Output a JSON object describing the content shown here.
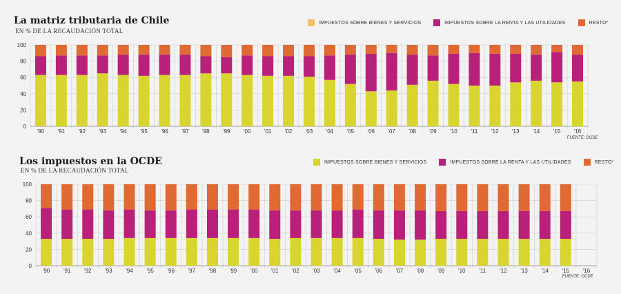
{
  "colors": {
    "bienes": "#d9d530",
    "renta": "#b8207a",
    "resto": "#e06a34",
    "grid": "#cfcfcf",
    "axis": "#888888"
  },
  "chart_data": [
    {
      "type": "bar",
      "stacked": true,
      "title": "La matriz tributaria de Chile",
      "subtitle": "EN % DE LA RECAUDACIÓN TOTAL",
      "source": "FUENTE: OCDE",
      "ylim": [
        0,
        100
      ],
      "yticks": [
        0,
        20,
        40,
        60,
        80,
        100
      ],
      "legend_position": "top-right",
      "categories": [
        "'90",
        "'91",
        "'92",
        "'93",
        "'94",
        "'95",
        "'96",
        "'97",
        "'98",
        "'99",
        "'00",
        "'01",
        "'02",
        "'03",
        "'04",
        "'05",
        "'06",
        "'07",
        "'08",
        "'09",
        "'10",
        "'11",
        "'12",
        "'13",
        "'14",
        "'15",
        "'16"
      ],
      "legend_series": [
        {
          "name": "IMPUESTOS SOBRE BIENES Y SERVICIOS",
          "color_key": "bienes",
          "swatch": "#f3c06a"
        },
        {
          "name": "IMPUESTOS SOBRE LA RENTA Y LAS UTILIDADES",
          "color_key": "renta",
          "swatch": "#b8207a"
        },
        {
          "name": "RESTO*",
          "color_key": "resto",
          "swatch": "#e06a34"
        }
      ],
      "series": [
        {
          "name": "IMPUESTOS SOBRE BIENES Y SERVICIOS",
          "color_key": "bienes",
          "values": [
            63,
            63,
            63,
            65,
            63,
            62,
            63,
            63,
            65,
            65,
            63,
            62,
            62,
            61,
            57,
            52,
            43,
            44,
            51,
            56,
            52,
            50,
            50,
            54,
            56,
            54,
            55
          ]
        },
        {
          "name": "IMPUESTOS SOBRE LA RENTA Y LAS UTILIDADES",
          "color_key": "renta",
          "values": [
            23,
            24,
            24,
            22,
            25,
            26,
            25,
            25,
            21,
            20,
            24,
            24,
            24,
            25,
            30,
            36,
            46,
            46,
            37,
            31,
            37,
            40,
            39,
            35,
            32,
            37,
            33
          ]
        },
        {
          "name": "RESTO*",
          "color_key": "resto",
          "values": [
            14,
            13,
            13,
            13,
            12,
            12,
            12,
            12,
            14,
            15,
            13,
            14,
            14,
            14,
            13,
            12,
            11,
            10,
            12,
            13,
            11,
            10,
            11,
            11,
            12,
            9,
            12
          ]
        }
      ]
    },
    {
      "type": "bar",
      "stacked": true,
      "title": "Los impuestos en la OCDE",
      "subtitle": "EN % DE LA RECAUDACIÓN TOTAL",
      "source": "FUENTE: OCDE",
      "ylim": [
        0,
        100
      ],
      "yticks": [
        0,
        20,
        40,
        60,
        80,
        100
      ],
      "legend_position": "top-right",
      "categories": [
        "'90",
        "'91",
        "'92",
        "'93",
        "'94",
        "'95",
        "'96",
        "'97",
        "'98",
        "'99",
        "'00",
        "'01",
        "'02",
        "'03",
        "'04",
        "'05",
        "'06",
        "'07",
        "'08",
        "'09",
        "'10",
        "'11",
        "'12",
        "'13",
        "'14",
        "'15",
        "'16"
      ],
      "legend_series": [
        {
          "name": "IMPUESTOS SOBRE BIENES Y SERVICIOS",
          "color_key": "bienes",
          "swatch": "#d9d530"
        },
        {
          "name": "IMPUESTOS SOBRE LA RENTA Y LAS UTILIDADES",
          "color_key": "renta",
          "swatch": "#b8207a"
        },
        {
          "name": "RESTO*",
          "color_key": "resto",
          "swatch": "#e06a34"
        }
      ],
      "series": [
        {
          "name": "IMPUESTOS SOBRE BIENES Y SERVICIOS",
          "color_key": "bienes",
          "values": [
            33,
            33,
            33,
            33,
            34,
            34,
            34,
            34,
            34,
            34,
            34,
            33,
            34,
            34,
            34,
            34,
            33,
            32,
            32,
            33,
            33,
            33,
            33,
            33,
            33,
            33,
            null
          ]
        },
        {
          "name": "IMPUESTOS SOBRE LA RENTA Y LAS UTILIDADES",
          "color_key": "renta",
          "values": [
            38,
            36,
            36,
            35,
            35,
            34,
            34,
            35,
            35,
            35,
            35,
            35,
            34,
            34,
            34,
            35,
            35,
            36,
            36,
            34,
            34,
            34,
            34,
            34,
            34,
            34,
            null
          ]
        },
        {
          "name": "RESTO*",
          "color_key": "resto",
          "values": [
            29,
            31,
            31,
            32,
            31,
            32,
            32,
            31,
            31,
            31,
            31,
            32,
            32,
            32,
            32,
            31,
            32,
            32,
            32,
            33,
            33,
            33,
            33,
            33,
            33,
            33,
            null
          ]
        }
      ]
    }
  ]
}
